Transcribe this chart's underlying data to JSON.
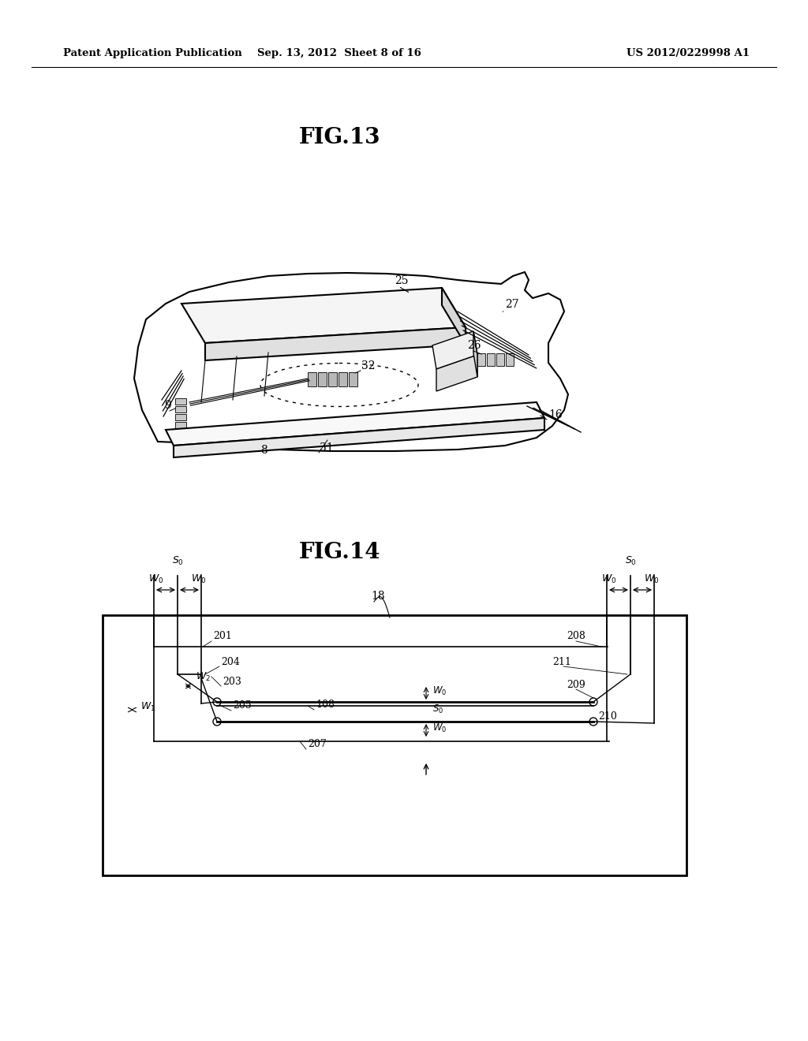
{
  "bg_color": "#ffffff",
  "line_color": "#000000",
  "header_left": "Patent Application Publication",
  "header_center": "Sep. 13, 2012  Sheet 8 of 16",
  "header_right": "US 2012/0229998 A1",
  "fig13_title": "FIG.13",
  "fig14_title": "FIG.14"
}
